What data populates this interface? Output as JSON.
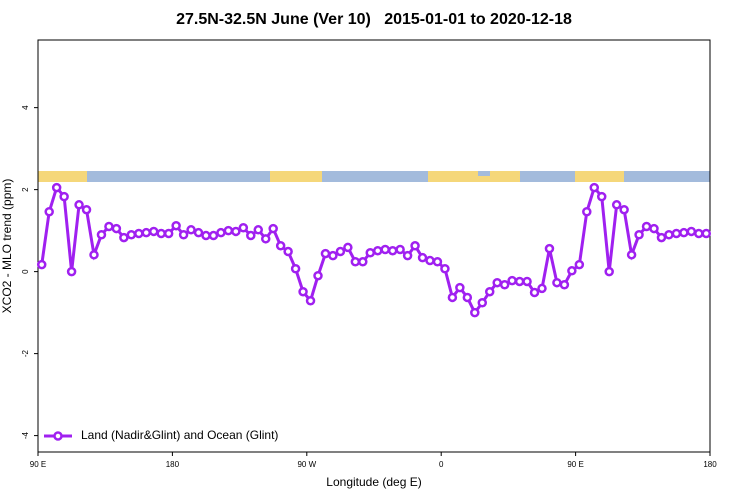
{
  "chart_data": {
    "type": "line",
    "title": "27.5N-32.5N June (Ver 10)   2015-01-01 to 2020-12-18",
    "x_label": "Longitude (deg E)",
    "y_label": "XCO2 - MLO trend (ppm)",
    "x": [
      92.5,
      97.5,
      102.5,
      107.5,
      112.5,
      117.5,
      122.5,
      127.5,
      132.5,
      137.5,
      142.5,
      147.5,
      152.5,
      157.5,
      162.5,
      167.5,
      172.5,
      177.5,
      182.5,
      187.5,
      192.5,
      197.5,
      202.5,
      207.5,
      212.5,
      217.5,
      222.5,
      227.5,
      232.5,
      237.5,
      242.5,
      247.5,
      252.5,
      257.5,
      262.5,
      267.5,
      272.5,
      277.5,
      282.5,
      287.5,
      292.5,
      297.5,
      302.5,
      307.5,
      312.5,
      317.5,
      322.5,
      327.5,
      332.5,
      337.5,
      342.5,
      347.5,
      352.5,
      357.5,
      362.5,
      367.5,
      372.5,
      377.5,
      382.5,
      387.5,
      392.5,
      397.5,
      402.5,
      407.5,
      412.5,
      417.5,
      422.5,
      427.5,
      432.5,
      437.5,
      442.5,
      447.5,
      452.5,
      457.5,
      462.5,
      467.5,
      472.5,
      477.5,
      482.5,
      487.5,
      492.5,
      497.5,
      502.5,
      507.5,
      512.5,
      517.5,
      522.5,
      527.5,
      532.5,
      537.5
    ],
    "series": [
      {
        "name": "Land (Nadir&Glint) and Ocean (Glint)",
        "color": "#a020f0",
        "values": [
          0.17,
          1.46,
          2.05,
          1.83,
          0.0,
          1.63,
          1.51,
          0.41,
          0.9,
          1.1,
          1.05,
          0.83,
          0.9,
          0.93,
          0.95,
          0.98,
          0.93,
          0.93,
          1.12,
          0.9,
          1.02,
          0.95,
          0.88,
          0.88,
          0.95,
          1.0,
          0.98,
          1.07,
          0.88,
          1.02,
          0.8,
          1.05,
          0.63,
          0.49,
          0.07,
          -0.49,
          -0.71,
          -0.1,
          0.44,
          0.39,
          0.49,
          0.59,
          0.24,
          0.24,
          0.46,
          0.51,
          0.54,
          0.51,
          0.54,
          0.39,
          0.63,
          0.34,
          0.27,
          0.24,
          0.07,
          -0.63,
          -0.39,
          -0.63,
          -1.0,
          -0.76,
          -0.49,
          -0.27,
          -0.32,
          -0.22,
          -0.24,
          -0.24,
          -0.51,
          -0.41,
          0.56,
          -0.27,
          -0.32,
          0.02,
          0.17,
          1.46,
          2.05,
          1.83,
          0.0,
          1.63,
          1.51,
          0.41,
          0.9,
          1.1,
          1.05,
          0.83,
          0.9,
          0.93,
          0.95,
          0.98,
          0.93,
          0.93
        ]
      }
    ],
    "xlim": [
      90,
      540
    ],
    "xticks": [
      {
        "value": 90,
        "label": "90 E"
      },
      {
        "value": 180,
        "label": "180"
      },
      {
        "value": 270,
        "label": "90 W"
      },
      {
        "value": 360,
        "label": "0"
      },
      {
        "value": 450,
        "label": "90 E"
      },
      {
        "value": 540,
        "label": "180"
      }
    ],
    "ylim": [
      -4.4,
      5.65
    ],
    "yticks": [
      -4,
      -2,
      0,
      2,
      4
    ],
    "legend": "bottomleft"
  }
}
